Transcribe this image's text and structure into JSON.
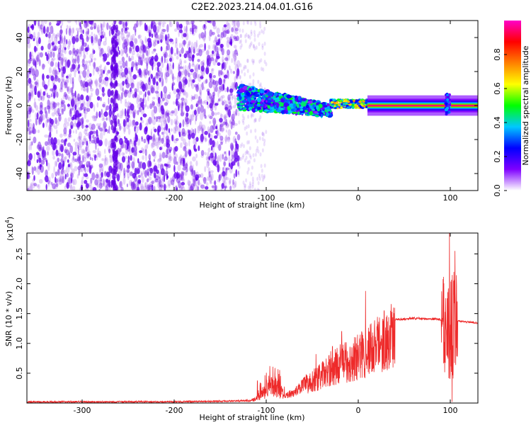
{
  "title": "C2E2.2023.214.04.01.G16",
  "chart_data": [
    {
      "type": "heatmap",
      "xlabel": "Height of straight line (km)",
      "ylabel": "Frequency (Hz)",
      "xlim": [
        -360,
        130
      ],
      "ylim": [
        -50,
        50
      ],
      "x_ticks": [
        -300,
        -200,
        -100,
        0,
        100
      ],
      "x_tick_labels": [
        "-300",
        "-200",
        "-100",
        "0",
        "100"
      ],
      "y_ticks": [
        -40,
        -20,
        0,
        20,
        40
      ],
      "y_tick_labels": [
        "-40",
        "-20",
        "0",
        "20",
        "40"
      ],
      "colorbar": {
        "label": "Normalized spectral amplitude",
        "range": [
          0,
          1
        ],
        "ticks": [
          0.0,
          0.2,
          0.4,
          0.6,
          0.8
        ],
        "tick_labels": [
          "0.0",
          "0.2",
          "0.4",
          "0.6",
          "0.8"
        ],
        "colors": [
          "#ffffff",
          "#7f00ff",
          "#0000ff",
          "#00c8ff",
          "#00ff00",
          "#ffff00",
          "#ff8000",
          "#ff0000",
          "#ff00c8"
        ]
      },
      "regions": [
        {
          "x": [
            -360,
            -130
          ],
          "freq": [
            -50,
            50
          ],
          "amplitude": 0.05,
          "description_level": "scattered noise"
        },
        {
          "x": [
            -130,
            -30
          ],
          "freq_center": [
            5,
            -3
          ],
          "amplitude": 0.3
        },
        {
          "x": [
            -30,
            10
          ],
          "freq_center": [
            1,
            1
          ],
          "amplitude": 0.5
        },
        {
          "x": [
            10,
            130
          ],
          "freq_center": [
            0,
            0
          ],
          "amplitude": 0.9
        }
      ],
      "spikes": [
        {
          "x": -265,
          "amplitude": 0.1
        },
        {
          "x": 97,
          "amplitude": 0.3
        }
      ]
    },
    {
      "type": "line",
      "xlabel": "Height of straight line (km)",
      "ylabel": "SNR (10 * v/v)",
      "y_multiplier_label": "(x10",
      "y_multiplier_exp": "4",
      "y_multiplier_close": ")",
      "xlim": [
        -360,
        130
      ],
      "ylim": [
        0,
        2.85
      ],
      "x_ticks": [
        -300,
        -200,
        -100,
        0,
        100
      ],
      "x_tick_labels": [
        "-300",
        "-200",
        "-100",
        "0",
        "100"
      ],
      "y_ticks": [
        0.5,
        1.0,
        1.5,
        2.0,
        2.5
      ],
      "y_tick_labels": [
        "0.5",
        "1.0",
        "1.5",
        "2.0",
        "2.5"
      ],
      "color": "#ee2a2a",
      "envelope": {
        "x": [
          -360,
          -300,
          -200,
          -150,
          -120,
          -110,
          -100,
          -95,
          -90,
          -85,
          -80,
          -70,
          -60,
          -50,
          -40,
          -30,
          -20,
          -10,
          0,
          10,
          20,
          30,
          40,
          60,
          80,
          90,
          95,
          100,
          105,
          110,
          120,
          130
        ],
        "y": [
          0.02,
          0.02,
          0.02,
          0.03,
          0.04,
          0.1,
          0.25,
          0.35,
          0.3,
          0.25,
          0.15,
          0.2,
          0.35,
          0.45,
          0.55,
          0.7,
          0.8,
          0.85,
          0.95,
          1.05,
          1.2,
          1.3,
          1.4,
          1.42,
          1.41,
          1.4,
          1.4,
          1.2,
          1.38,
          1.37,
          1.36,
          1.34
        ]
      },
      "peaks": [
        {
          "x": -96,
          "y": 0.62
        },
        {
          "x": -46,
          "y": 0.82
        },
        {
          "x": -28,
          "y": 0.95
        },
        {
          "x": -18,
          "y": 1.2
        },
        {
          "x": 8,
          "y": 1.88
        },
        {
          "x": 99,
          "y": 2.85
        },
        {
          "x": 102,
          "y": 0.02
        },
        {
          "x": 105,
          "y": 2.55
        }
      ]
    }
  ]
}
